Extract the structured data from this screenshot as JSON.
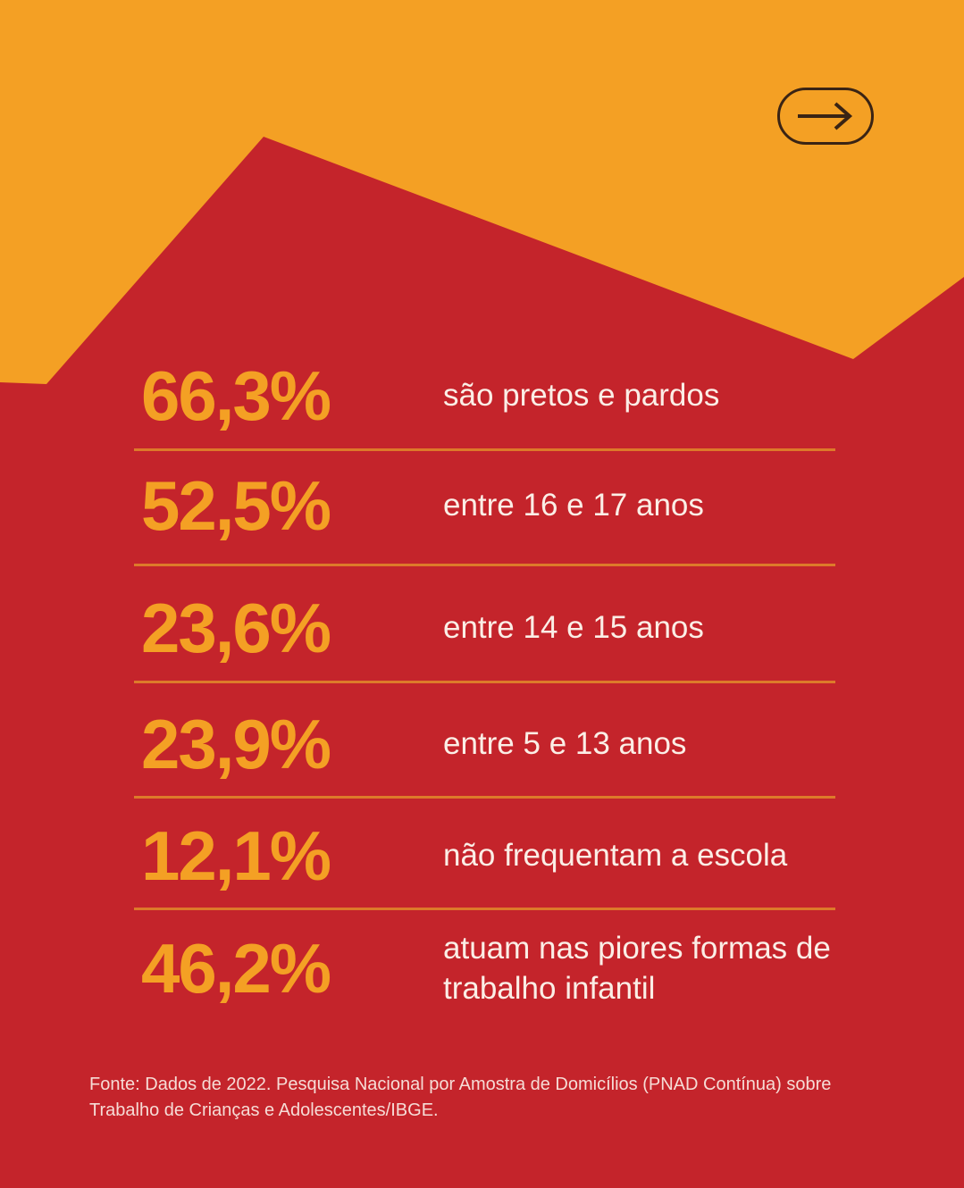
{
  "colors": {
    "background_top": "#f4a024",
    "background_bottom": "#c4242b",
    "number": "#f4a024",
    "text": "#fbeee6"
  },
  "nav": {
    "next_icon": "arrow-right-icon"
  },
  "stats": [
    {
      "value": "66,3%",
      "label": "são pretos e pardos"
    },
    {
      "value": "52,5%",
      "label": "entre 16 e 17 anos"
    },
    {
      "value": "23,6%",
      "label": "entre 14 e 15 anos"
    },
    {
      "value": "23,9%",
      "label": "entre 5 e 13 anos"
    },
    {
      "value": "12,1%",
      "label": "não frequentam a escola"
    },
    {
      "value": "46,2%",
      "label": "atuam nas piores formas de trabalho infantil"
    }
  ],
  "source": "Fonte: Dados de 2022. Pesquisa Nacional por Amostra de Domicílios (PNAD Contínua) sobre Trabalho de Crianças e Adolescentes/IBGE."
}
